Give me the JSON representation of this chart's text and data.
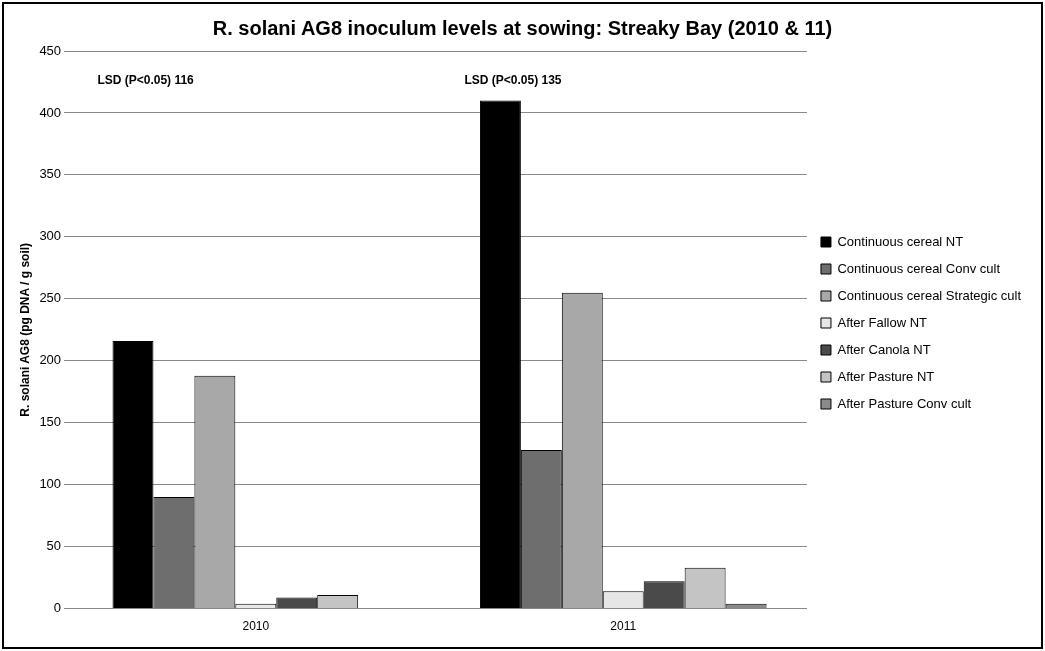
{
  "chart_data": {
    "type": "bar",
    "title": "R. solani AG8 inoculum levels at sowing: Streaky Bay (2010 & 11)",
    "ylabel": "R. solani AG8 (pg DNA / g soil)",
    "categories": [
      "2010",
      "2011"
    ],
    "series": [
      {
        "name": "Continuous cereal NT",
        "color": "#000000",
        "values": [
          216,
          410
        ]
      },
      {
        "name": "Continuous cereal Conv cult",
        "color": "#6e6e6e",
        "values": [
          90,
          128
        ]
      },
      {
        "name": "Continuous cereal Strategic cult",
        "color": "#a8a8a8",
        "values": [
          188,
          255
        ]
      },
      {
        "name": "After Fallow NT",
        "color": "#e6e6e6",
        "values": [
          4,
          14
        ]
      },
      {
        "name": "After Canola NT",
        "color": "#4a4a4a",
        "values": [
          9,
          22
        ]
      },
      {
        "name": "After Pasture NT",
        "color": "#c4c4c4",
        "values": [
          11,
          33
        ]
      },
      {
        "name": "After Pasture Conv cult",
        "color": "#8a8a8a",
        "values": [
          null,
          4
        ]
      }
    ],
    "annotations": [
      "LSD (P<0.05) 116",
      "LSD (P<0.05) 135"
    ],
    "ylim": [
      0,
      450
    ],
    "yticks": [
      0,
      50,
      100,
      150,
      200,
      250,
      300,
      350,
      400,
      450
    ],
    "grid": "y",
    "legend": "right"
  }
}
